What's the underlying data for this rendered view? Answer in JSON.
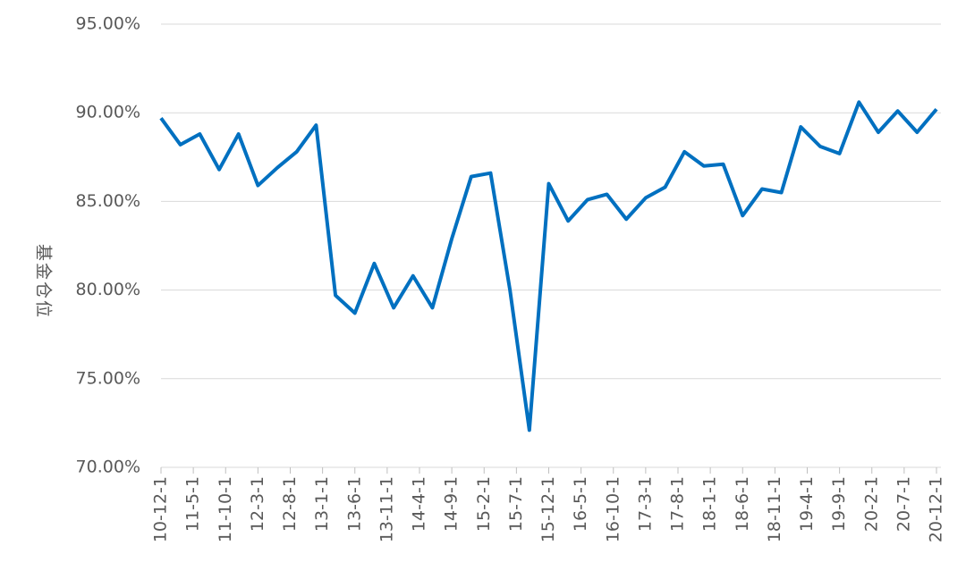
{
  "chart_data": {
    "type": "line",
    "y_label": "基金仓位",
    "x": [
      "10-12-1",
      "11-3-1",
      "11-6-1",
      "11-9-1",
      "11-12-1",
      "12-3-1",
      "12-6-1",
      "12-9-1",
      "12-12-1",
      "13-3-1",
      "13-6-1",
      "13-9-1",
      "13-12-1",
      "14-3-1",
      "14-6-1",
      "14-9-1",
      "14-12-1",
      "15-3-1",
      "15-6-1",
      "15-9-1",
      "15-12-1",
      "16-3-1",
      "16-6-1",
      "16-9-1",
      "16-12-1",
      "17-3-1",
      "17-6-1",
      "17-9-1",
      "17-12-1",
      "18-3-1",
      "18-6-1",
      "18-9-1",
      "18-12-1",
      "19-3-1",
      "19-6-1",
      "19-9-1",
      "19-12-1",
      "20-3-1",
      "20-6-1",
      "20-9-1",
      "20-12-1"
    ],
    "values": [
      89.7,
      88.2,
      88.8,
      86.8,
      88.8,
      85.9,
      86.9,
      87.8,
      89.3,
      79.7,
      78.7,
      81.5,
      79.0,
      80.8,
      79.0,
      82.9,
      86.4,
      86.6,
      80.0,
      72.1,
      86.0,
      83.9,
      85.1,
      85.4,
      84.0,
      85.2,
      85.8,
      87.8,
      87.0,
      87.1,
      84.2,
      85.7,
      85.5,
      89.2,
      88.1,
      87.7,
      90.6,
      88.9,
      90.1,
      88.9,
      90.2
    ],
    "color": "#0070c0",
    "xlim": [
      "10-12-1",
      "20-12-1"
    ],
    "xticks": [
      "10-12-1",
      "11-5-1",
      "11-10-1",
      "12-3-1",
      "12-8-1",
      "13-1-1",
      "13-6-1",
      "13-11-1",
      "14-4-1",
      "14-9-1",
      "15-2-1",
      "15-7-1",
      "15-12-1",
      "16-5-1",
      "16-10-1",
      "17-3-1",
      "17-8-1",
      "18-1-1",
      "18-6-1",
      "18-11-1",
      "19-4-1",
      "19-9-1",
      "20-2-1",
      "20-7-1",
      "20-12-1"
    ],
    "ylim": [
      70,
      95
    ],
    "yticks": [
      {
        "value": 70,
        "label": "70.00%"
      },
      {
        "value": 75,
        "label": "75.00%"
      },
      {
        "value": 80,
        "label": "80.00%"
      },
      {
        "value": 85,
        "label": "85.00%"
      },
      {
        "value": 90,
        "label": "90.00%"
      },
      {
        "value": 95,
        "label": "95.00%"
      }
    ],
    "grid": true
  }
}
